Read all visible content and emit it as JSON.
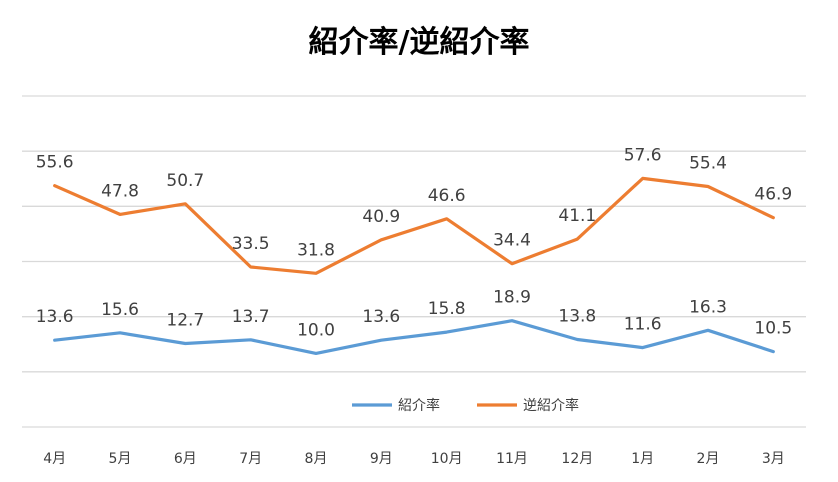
{
  "chart_data": {
    "type": "line",
    "title": "紹介率/逆紹介率",
    "categories": [
      "4月",
      "5月",
      "6月",
      "7月",
      "8月",
      "9月",
      "10月",
      "11月",
      "12月",
      "1月",
      "2月",
      "3月"
    ],
    "series": [
      {
        "name": "紹介率",
        "values": [
          13.6,
          15.6,
          12.7,
          13.7,
          10.0,
          13.6,
          15.8,
          18.9,
          13.8,
          11.6,
          16.3,
          10.5
        ],
        "color": "#5b9bd5"
      },
      {
        "name": "逆紹介率",
        "values": [
          55.6,
          47.8,
          50.7,
          33.5,
          31.8,
          40.9,
          46.6,
          34.4,
          41.1,
          57.6,
          55.4,
          46.9
        ],
        "color": "#ed7d31"
      }
    ],
    "ylim": [
      -10,
      80
    ],
    "grid": true,
    "legend": "inside-bottom-center"
  }
}
